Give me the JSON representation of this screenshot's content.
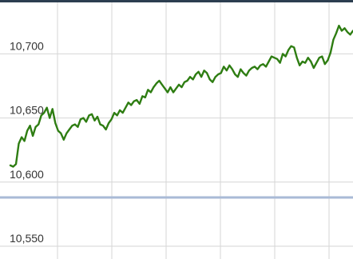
{
  "chart_data": {
    "type": "line",
    "title": "",
    "xlabel": "",
    "ylabel": "",
    "grid": true,
    "ylim": [
      10540,
      10742
    ],
    "y_ticks": [
      {
        "value": 10700,
        "label": "10,700"
      },
      {
        "value": 10650,
        "label": "10,650"
      },
      {
        "value": 10600,
        "label": "10,600"
      },
      {
        "value": 10550,
        "label": "10,550"
      }
    ],
    "reference_line": {
      "value": 10588
    },
    "series": [
      {
        "color": "#2e7d12",
        "values": [
          10613,
          10612,
          10614,
          10630,
          10635,
          10632,
          10640,
          10644,
          10636,
          10643,
          10645,
          10652,
          10654,
          10658,
          10650,
          10657,
          10646,
          10640,
          10638,
          10633,
          10638,
          10641,
          10644,
          10645,
          10643,
          10649,
          10650,
          10647,
          10652,
          10653,
          10648,
          10651,
          10645,
          10644,
          10641,
          10646,
          10649,
          10654,
          10652,
          10656,
          10654,
          10658,
          10662,
          10660,
          10663,
          10664,
          10661,
          10667,
          10666,
          10672,
          10670,
          10674,
          10677,
          10679,
          10676,
          10673,
          10670,
          10674,
          10670,
          10673,
          10676,
          10674,
          10678,
          10679,
          10682,
          10680,
          10684,
          10686,
          10682,
          10687,
          10685,
          10680,
          10678,
          10682,
          10684,
          10685,
          10690,
          10687,
          10691,
          10688,
          10684,
          10682,
          10688,
          10685,
          10683,
          10687,
          10689,
          10690,
          10688,
          10691,
          10692,
          10690,
          10694,
          10698,
          10697,
          10696,
          10693,
          10700,
          10698,
          10703,
          10706,
          10705,
          10697,
          10691,
          10694,
          10693,
          10697,
          10694,
          10689,
          10693,
          10697,
          10698,
          10692,
          10695,
          10701,
          10711,
          10716,
          10722,
          10718,
          10720,
          10717,
          10715,
          10718
        ]
      }
    ]
  },
  "colors": {
    "background": "#ffffff",
    "grid": "#d6d6d6",
    "reference_line": "#a9bad6",
    "top_border": "#2c3e50",
    "axis_text": "#333333"
  }
}
